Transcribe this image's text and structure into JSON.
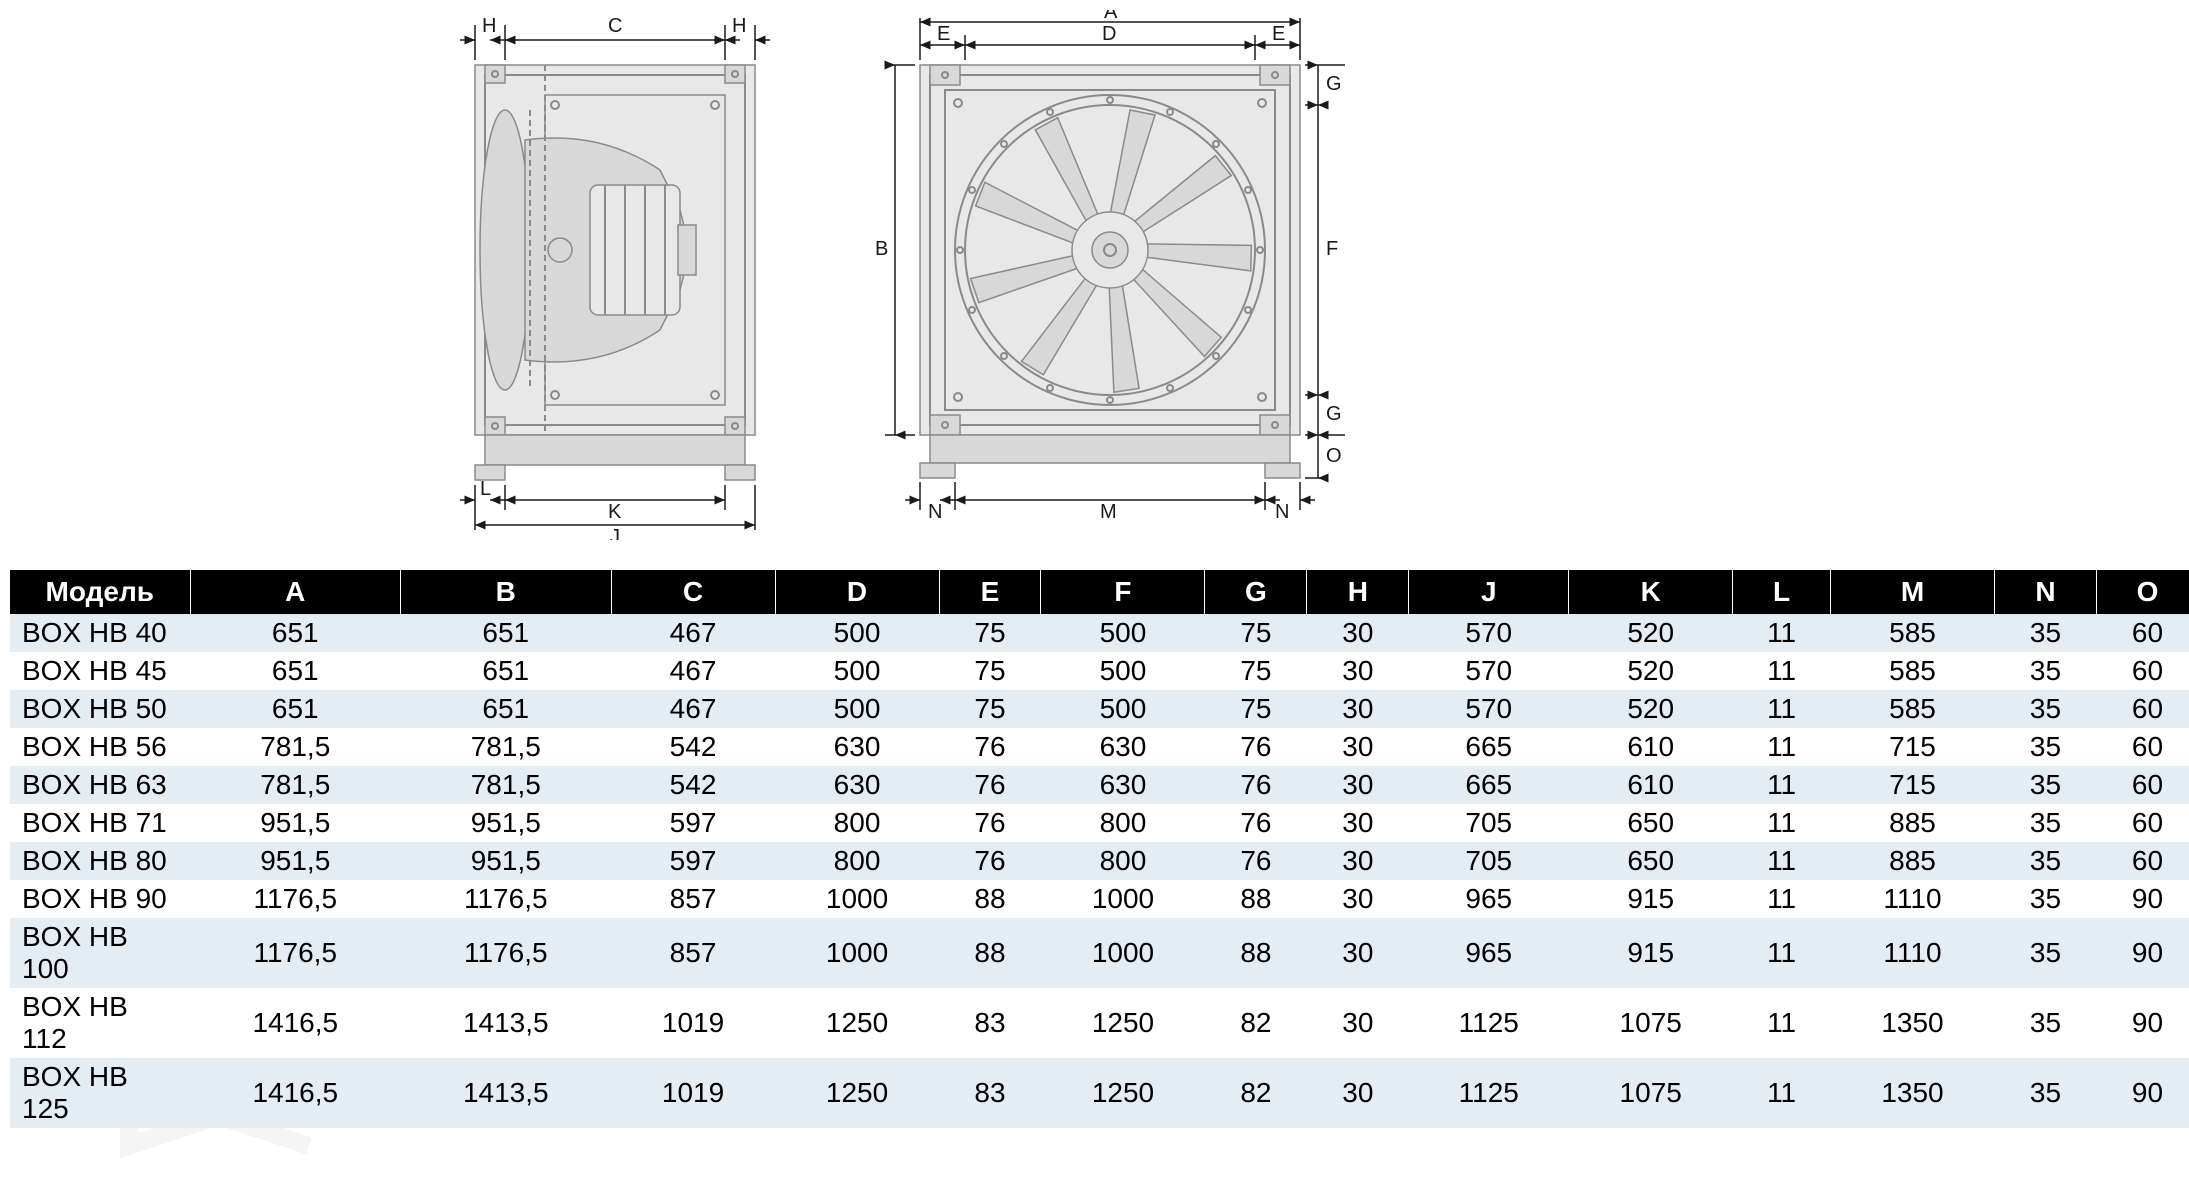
{
  "diagrams": {
    "side_view": {
      "labels": {
        "H_left": "H",
        "C": "C",
        "H_right": "H",
        "L": "L",
        "K": "K",
        "J": "J"
      }
    },
    "front_view": {
      "labels": {
        "A": "A",
        "E_left": "E",
        "D": "D",
        "E_right": "E",
        "G_top": "G",
        "F": "F",
        "G_bot": "G",
        "O": "O",
        "N_left": "N",
        "M": "M",
        "N_right": "N",
        "B": "B"
      }
    }
  },
  "table": {
    "header_bg": "#000000",
    "header_color": "#ffffff",
    "row_odd_bg": "#e4edf4",
    "row_even_bg": "#ffffff",
    "font_size": 28,
    "columns": [
      "Модель",
      "A",
      "B",
      "C",
      "D",
      "E",
      "F",
      "G",
      "H",
      "J",
      "K",
      "L",
      "M",
      "N",
      "O"
    ],
    "rows": [
      [
        "BOX HB 40",
        "651",
        "651",
        "467",
        "500",
        "75",
        "500",
        "75",
        "30",
        "570",
        "520",
        "11",
        "585",
        "35",
        "60"
      ],
      [
        "BOX HB 45",
        "651",
        "651",
        "467",
        "500",
        "75",
        "500",
        "75",
        "30",
        "570",
        "520",
        "11",
        "585",
        "35",
        "60"
      ],
      [
        "BOX HB 50",
        "651",
        "651",
        "467",
        "500",
        "75",
        "500",
        "75",
        "30",
        "570",
        "520",
        "11",
        "585",
        "35",
        "60"
      ],
      [
        "BOX HB 56",
        "781,5",
        "781,5",
        "542",
        "630",
        "76",
        "630",
        "76",
        "30",
        "665",
        "610",
        "11",
        "715",
        "35",
        "60"
      ],
      [
        "BOX HB 63",
        "781,5",
        "781,5",
        "542",
        "630",
        "76",
        "630",
        "76",
        "30",
        "665",
        "610",
        "11",
        "715",
        "35",
        "60"
      ],
      [
        "BOX HB 71",
        "951,5",
        "951,5",
        "597",
        "800",
        "76",
        "800",
        "76",
        "30",
        "705",
        "650",
        "11",
        "885",
        "35",
        "60"
      ],
      [
        "BOX HB 80",
        "951,5",
        "951,5",
        "597",
        "800",
        "76",
        "800",
        "76",
        "30",
        "705",
        "650",
        "11",
        "885",
        "35",
        "60"
      ],
      [
        "BOX HB 90",
        "1176,5",
        "1176,5",
        "857",
        "1000",
        "88",
        "1000",
        "88",
        "30",
        "965",
        "915",
        "11",
        "1110",
        "35",
        "90"
      ],
      [
        "BOX HB 100",
        "1176,5",
        "1176,5",
        "857",
        "1000",
        "88",
        "1000",
        "88",
        "30",
        "965",
        "915",
        "11",
        "1110",
        "35",
        "90"
      ],
      [
        "BOX HB 112",
        "1416,5",
        "1413,5",
        "1019",
        "1250",
        "83",
        "1250",
        "82",
        "30",
        "1125",
        "1075",
        "11",
        "1350",
        "35",
        "90"
      ],
      [
        "BOX HB 125",
        "1416,5",
        "1413,5",
        "1019",
        "1250",
        "83",
        "1250",
        "82",
        "30",
        "1125",
        "1075",
        "11",
        "1350",
        "35",
        "90"
      ]
    ]
  },
  "watermark_text": "VENTEL"
}
